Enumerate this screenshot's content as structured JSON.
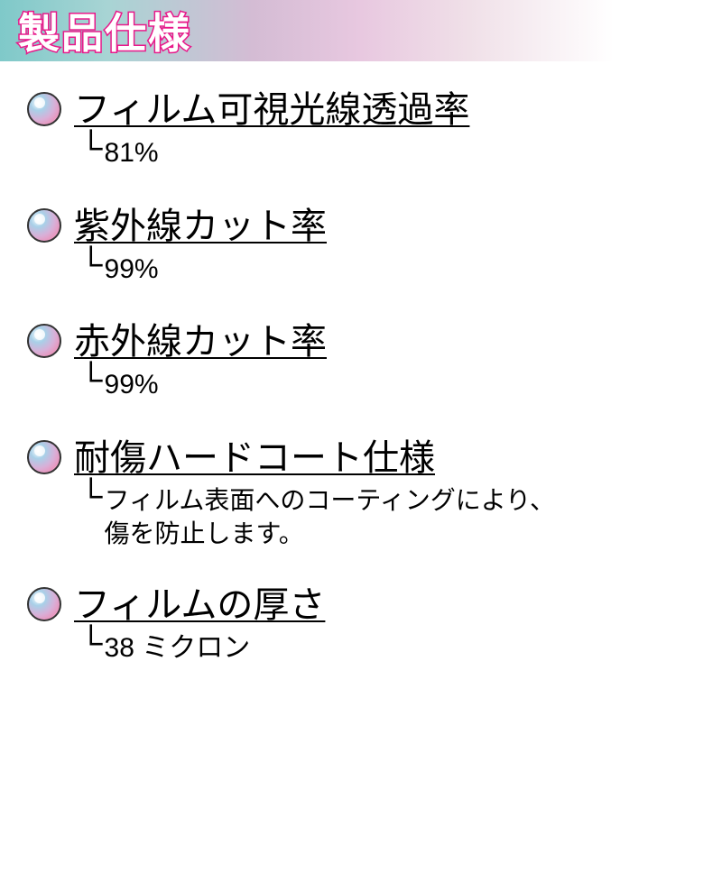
{
  "header": {
    "title": "製品仕様",
    "title_color": "#ffffff",
    "title_stroke": "#e8188a",
    "bg_gradient": [
      "#7fc9c9",
      "#d4bcd4",
      "#ffffff"
    ]
  },
  "bullet_style": {
    "gradient": [
      "#a8d0e8",
      "#d8b0d8",
      "#e898c0"
    ],
    "border_color": "#333333"
  },
  "specs": [
    {
      "label": "フィルム可視光線透過率",
      "value": "81%"
    },
    {
      "label": "紫外線カット率",
      "value": "99%"
    },
    {
      "label": "赤外線カット率",
      "value": "99%"
    },
    {
      "label": "耐傷ハードコート仕様",
      "value": "フィルム表面へのコーティングにより、\n傷を防止します。"
    },
    {
      "label": "フィルムの厚さ",
      "value": "38 ミクロン"
    }
  ]
}
